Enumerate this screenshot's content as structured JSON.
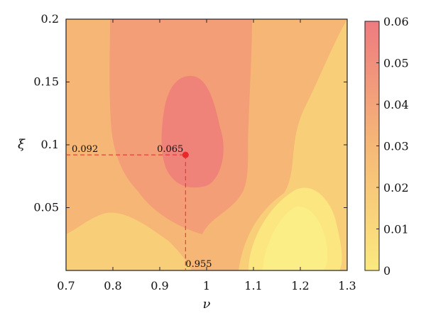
{
  "chart_data": {
    "type": "contour",
    "xlabel": "ν",
    "ylabel": "ξ",
    "xlim": [
      0.7,
      1.3
    ],
    "ylim": [
      0.0,
      0.2
    ],
    "x_ticks": [
      "0.7",
      "0.8",
      "0.9",
      "1",
      "1.1",
      "1.2",
      "1.3"
    ],
    "y_ticks": [
      "0.05",
      "0.1",
      "0.15",
      "0.2"
    ],
    "colorbar": {
      "min": 0,
      "max": 0.06,
      "ticks": [
        "0",
        "0.01",
        "0.02",
        "0.03",
        "0.04",
        "0.05",
        "0.06"
      ],
      "color_low": "#fbe97f",
      "color_high": "#ee7b80"
    },
    "contour_levels": [
      {
        "level": 0.015,
        "color": "#fbe680"
      },
      {
        "level": 0.025,
        "color": "#f8cf78"
      },
      {
        "level": 0.035,
        "color": "#f5b676"
      },
      {
        "level": 0.045,
        "color": "#f39e76"
      },
      {
        "level": 0.055,
        "color": "#ef8379"
      }
    ],
    "optimum": {
      "x": 0.955,
      "y": 0.092,
      "value": 0.065,
      "color": "#e8282a"
    },
    "annotations": {
      "x_value": "0.955",
      "y_value": "0.092",
      "peak_value": "0.065"
    }
  }
}
